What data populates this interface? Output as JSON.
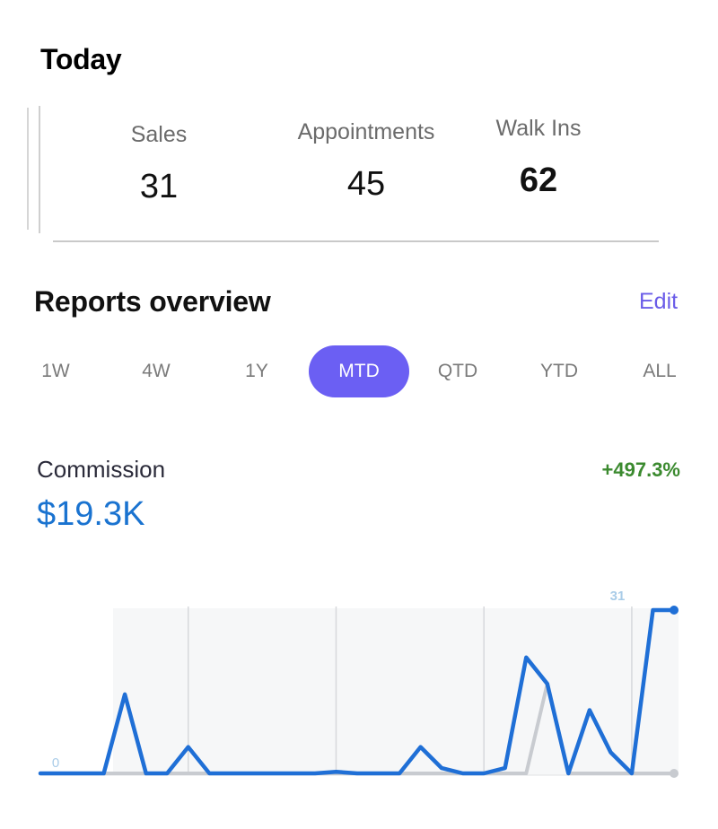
{
  "today": {
    "title": "Today",
    "stats": [
      {
        "label": "Sales",
        "value": "31"
      },
      {
        "label": "Appointments",
        "value": "45"
      },
      {
        "label": "Walk Ins",
        "value": "62"
      }
    ]
  },
  "reports": {
    "title": "Reports overview",
    "edit_label": "Edit",
    "accent_color": "#6b5ff3",
    "periods": [
      "1W",
      "4W",
      "1Y",
      "MTD",
      "QTD",
      "YTD",
      "ALL"
    ],
    "selected_period": "MTD"
  },
  "metric": {
    "label": "Commission",
    "value": "$19.3K",
    "change": "+497.3%"
  },
  "chart_data": {
    "type": "line",
    "x": [
      1,
      2,
      3,
      4,
      5,
      6,
      7,
      8,
      9,
      10,
      11,
      12,
      13,
      14,
      15,
      16,
      17,
      18,
      19,
      20,
      21,
      22,
      23,
      24,
      25,
      26,
      27,
      28,
      29,
      30,
      31
    ],
    "series": [
      {
        "color": "#1f6fd6",
        "values": [
          0,
          0,
          0,
          0,
          15,
          0,
          0,
          5,
          0,
          0,
          0,
          0,
          0,
          0,
          0.3,
          0,
          0,
          0,
          5,
          1,
          0,
          0,
          1,
          22,
          17,
          0,
          12,
          4,
          0,
          31,
          31
        ]
      },
      {
        "color": "#c8cbd0",
        "values": [
          0,
          0,
          0,
          0,
          0,
          0,
          0,
          0,
          0,
          0,
          0,
          0,
          0,
          0,
          0,
          0,
          0,
          0,
          0,
          0,
          0,
          0,
          0,
          0,
          17,
          0,
          0,
          0,
          0,
          0,
          0
        ]
      }
    ],
    "data_labels": {
      "min": "0",
      "max": "31"
    },
    "ylim": [
      0,
      31
    ],
    "grid": true
  }
}
